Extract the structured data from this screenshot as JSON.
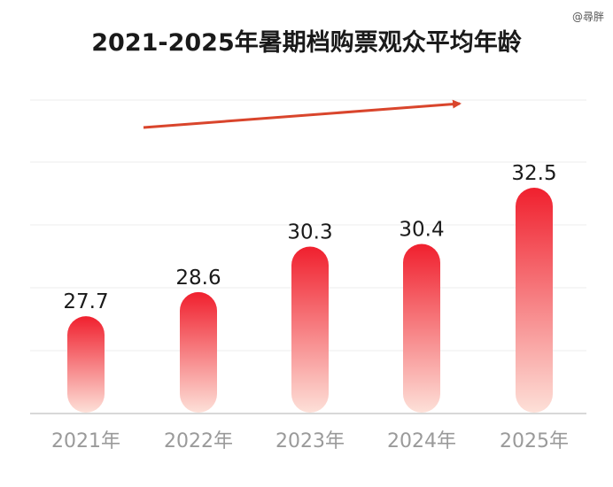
{
  "watermark": "@尋胖",
  "chart_data": {
    "type": "bar",
    "title": "2021-2025年暑期档购票观众平均年龄",
    "categories": [
      "2021年",
      "2022年",
      "2023年",
      "2024年",
      "2025年"
    ],
    "values": [
      27.7,
      28.6,
      30.3,
      30.4,
      32.5
    ],
    "value_labels": [
      "27.7",
      "28.6",
      "30.3",
      "30.4",
      "32.5"
    ],
    "xlabel": "",
    "ylabel": "",
    "grid": true,
    "trend_arrow": true,
    "colors": {
      "bar_top": "#f0202e",
      "bar_bottom": "#fde0d8",
      "arrow": "#d9452c",
      "grid": "#eeeeee",
      "axis": "#d8d8d8"
    }
  }
}
